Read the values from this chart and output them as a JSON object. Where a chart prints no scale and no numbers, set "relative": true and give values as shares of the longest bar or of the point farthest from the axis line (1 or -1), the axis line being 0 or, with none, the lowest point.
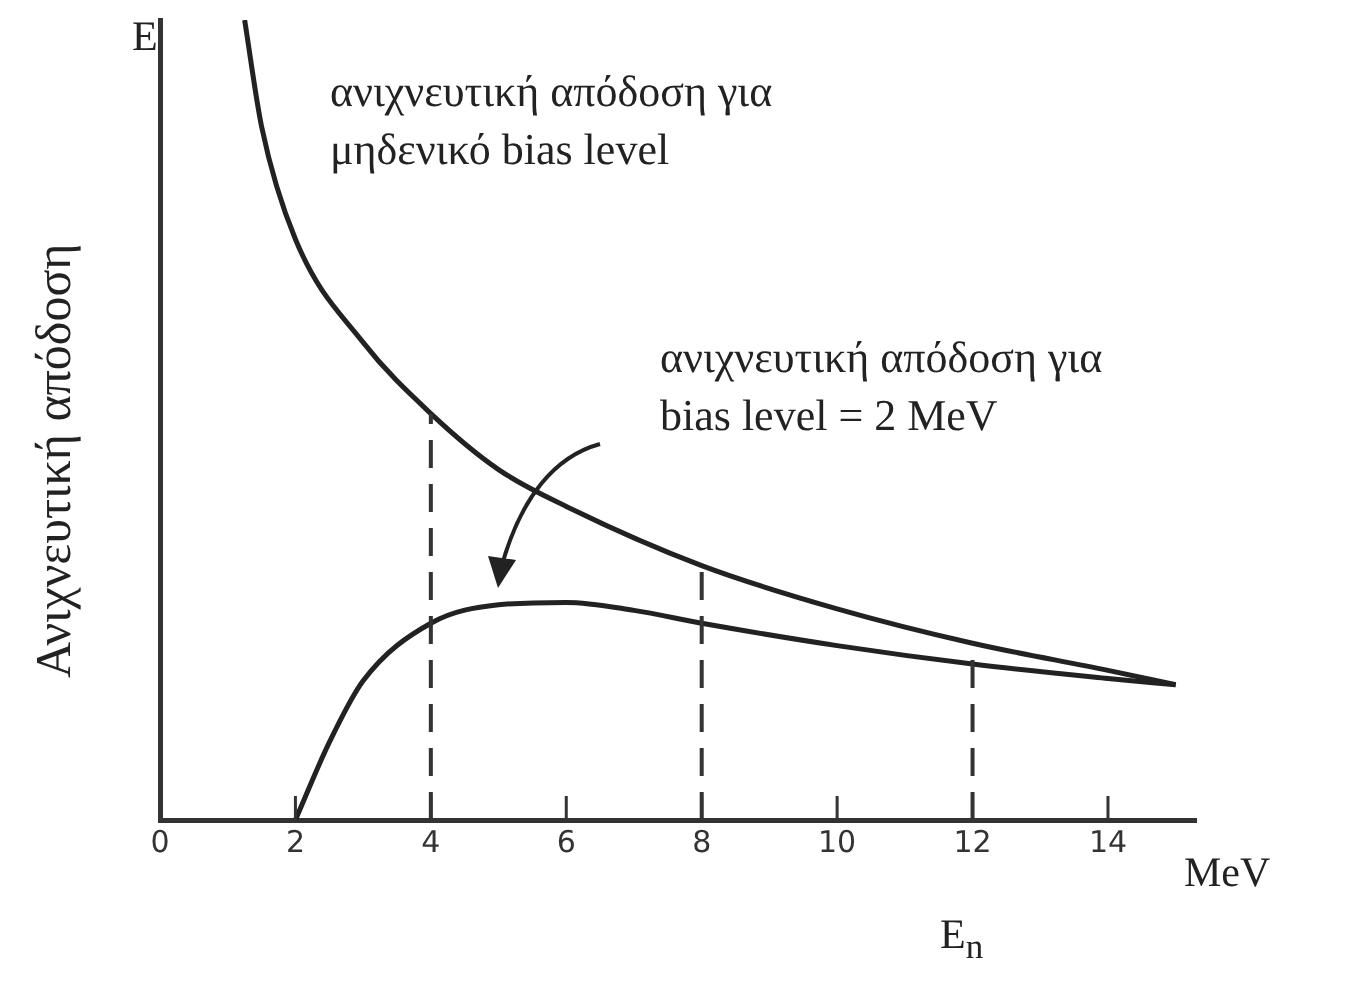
{
  "chart_data": {
    "type": "line",
    "relative": true,
    "xlabel": "E$_{n}$",
    "ylabel": "Ανιχνευτική απόδοση",
    "annotations": [
      "E",
      "MeV",
      "ανιχνευτική απόδοση για bias level = 2 MeV"
    ],
    "xlim": [
      0,
      15.3
    ],
    "xticks": [
      0,
      2,
      4,
      6,
      8,
      10,
      12,
      14
    ],
    "legend": false,
    "grid": false,
    "marker": "none",
    "line_style": "solid",
    "series": [
      {
        "name": "ανιχνευτική απόδοση για μηδενικό bias level",
        "color": "#222222",
        "x": [
          1.25,
          1.5,
          2,
          3,
          4,
          5,
          6,
          8,
          10,
          12,
          14,
          15
        ],
        "values": [
          1.0,
          0.867,
          0.726,
          0.597,
          0.508,
          0.438,
          0.392,
          0.318,
          0.264,
          0.221,
          0.187,
          0.169
        ]
      },
      {
        "color": "#222222",
        "x": [
          2,
          2.5,
          3,
          4,
          5,
          6,
          7,
          8,
          10,
          12,
          14,
          15
        ],
        "values": [
          0,
          0.097,
          0.174,
          0.246,
          0.269,
          0.272,
          0.262,
          0.246,
          0.218,
          0.195,
          0.177,
          0.169
        ]
      }
    ],
    "ref_lines": [
      {
        "axis": "x",
        "value": 4,
        "line_style": "dashed"
      },
      {
        "axis": "x",
        "value": 8,
        "line_style": "dashed"
      },
      {
        "axis": "x",
        "value": 12,
        "line_style": "dashed"
      }
    ]
  }
}
